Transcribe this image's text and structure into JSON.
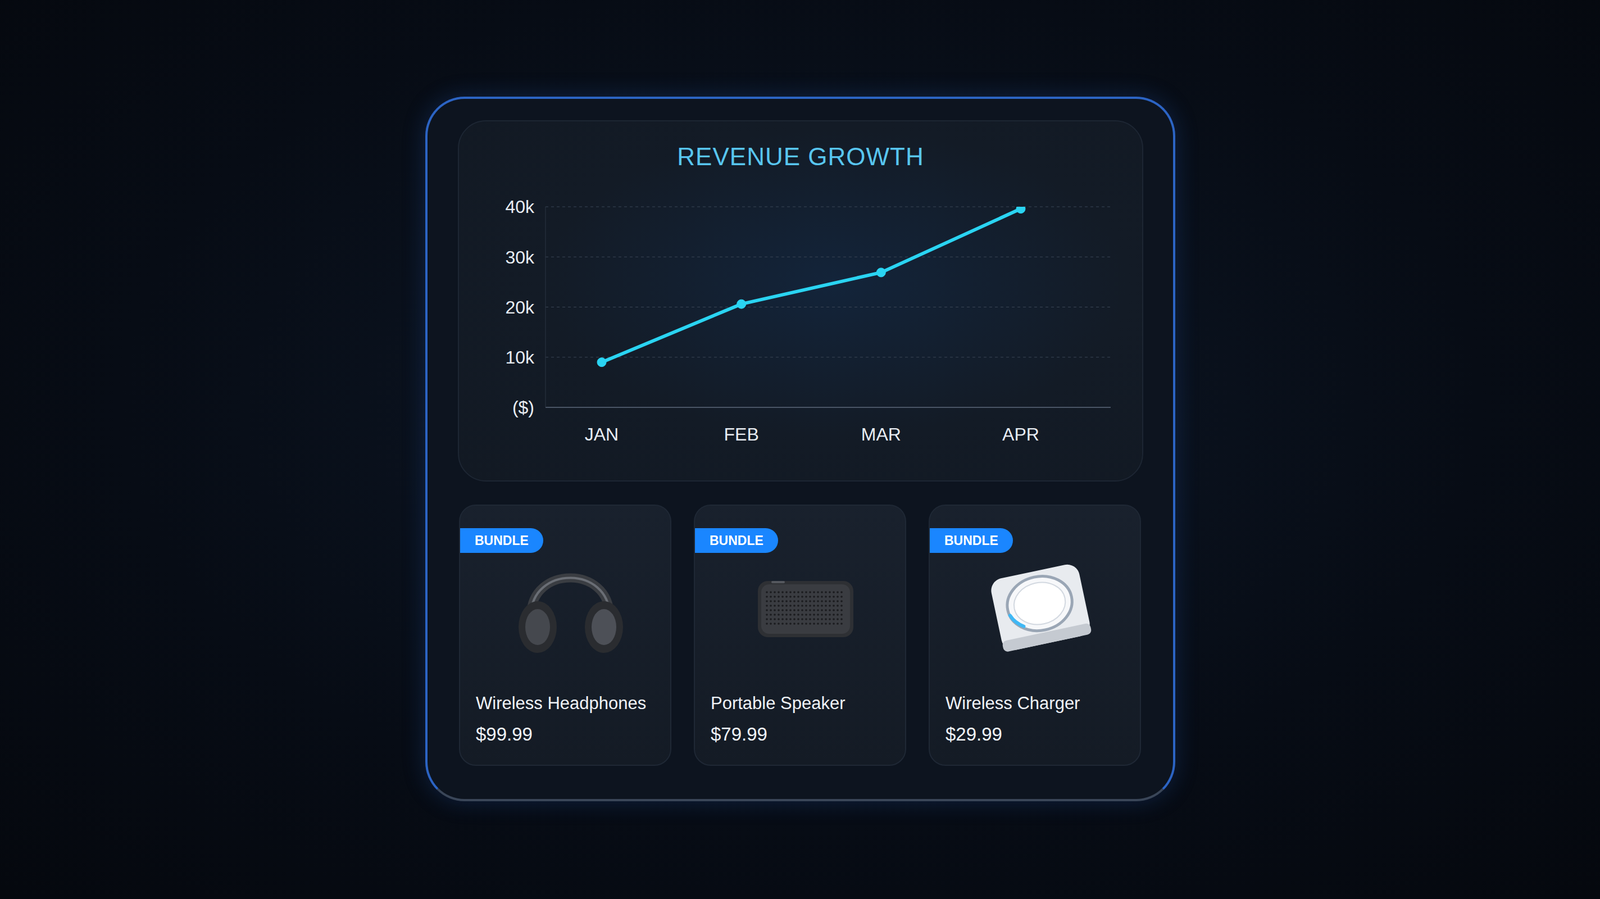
{
  "chart_data": {
    "type": "line",
    "title": "REVENUE GROWTH",
    "categories": [
      "JAN",
      "FEB",
      "MAR",
      "APR"
    ],
    "values": [
      9000,
      20600,
      26900,
      39600
    ],
    "color": "#2ad4f2",
    "ylim": [
      0,
      40000
    ],
    "yticks": [
      {
        "value": 0,
        "label": "($)"
      },
      {
        "value": 10000,
        "label": "10k"
      },
      {
        "value": 20000,
        "label": "20k"
      },
      {
        "value": 30000,
        "label": "30k"
      },
      {
        "value": 40000,
        "label": "40k"
      }
    ],
    "grid": true,
    "marker": "circle"
  },
  "products": [
    {
      "badge": "BUNDLE",
      "name": "Wireless Headphones",
      "price": "$99.99"
    },
    {
      "badge": "BUNDLE",
      "name": "Portable Speaker",
      "price": "$79.99"
    },
    {
      "badge": "BUNDLE",
      "name": "Wireless Charger",
      "price": "$29.99"
    }
  ]
}
